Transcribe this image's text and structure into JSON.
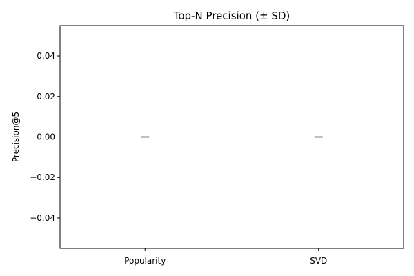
{
  "chart_data": {
    "type": "bar",
    "title": "Top-N Precision (± SD)",
    "xlabel": "",
    "ylabel": "Precision@5",
    "categories": [
      "Popularity",
      "SVD"
    ],
    "values": [
      0.0,
      0.0
    ],
    "errors": [
      0.0,
      0.0
    ],
    "ylim": [
      -0.055,
      0.055
    ],
    "yticks": [
      -0.04,
      -0.02,
      0.0,
      0.02,
      0.04
    ],
    "ytick_labels": [
      "−0.04",
      "−0.02",
      "0.00",
      "0.02",
      "0.04"
    ],
    "grid": false,
    "colors": {
      "errorbar": "#000000",
      "axes": "#000000"
    }
  }
}
